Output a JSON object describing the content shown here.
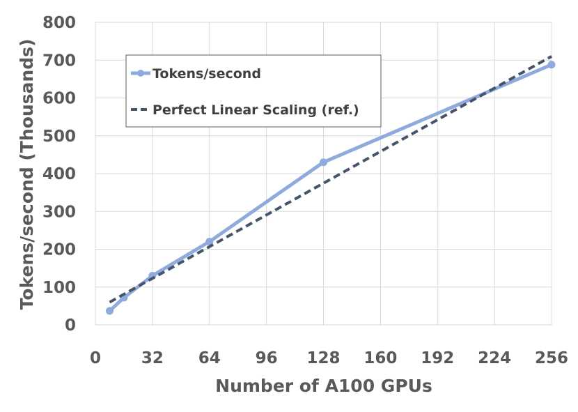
{
  "chart_data": {
    "type": "line",
    "title": "",
    "xlabel": "Number of A100 GPUs",
    "ylabel": "Tokens/second (Thousands)",
    "xlim": [
      0,
      256
    ],
    "ylim": [
      0,
      800
    ],
    "x_ticks": [
      0,
      32,
      64,
      96,
      128,
      160,
      192,
      224,
      256
    ],
    "y_ticks": [
      0,
      100,
      200,
      300,
      400,
      500,
      600,
      700,
      800
    ],
    "x_tick_labels": [
      "0",
      "32",
      "64",
      "96",
      "128",
      "160",
      "192",
      "224",
      "256"
    ],
    "y_tick_labels": [
      "0",
      "100",
      "200",
      "300",
      "400",
      "500",
      "600",
      "700",
      "800"
    ],
    "grid": true,
    "legend_position": "top-left",
    "series": [
      {
        "name": "Tokens/second",
        "style": "solid-with-markers",
        "color": "#8faadc",
        "x": [
          8,
          16,
          32,
          64,
          128,
          256
        ],
        "y": [
          37,
          72,
          130,
          220,
          430,
          688
        ]
      },
      {
        "name": "Perfect Linear Scaling (ref.)",
        "style": "dashed",
        "color": "#44546a",
        "x": [
          8,
          256
        ],
        "y": [
          60,
          710
        ]
      }
    ]
  }
}
